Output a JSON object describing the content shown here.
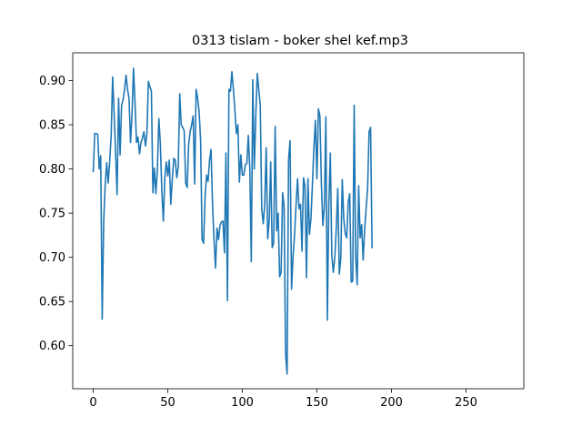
{
  "chart_data": {
    "type": "line",
    "title": "0313 tislam - boker shel kef.mp3",
    "xlabel": "",
    "ylabel": "",
    "xlim": [
      -13.75,
      288.75
    ],
    "ylim": [
      0.5513,
      0.9314
    ],
    "x_ticks": [
      0,
      50,
      100,
      150,
      200,
      250
    ],
    "y_ticks": [
      0.6,
      0.65,
      0.7,
      0.75,
      0.8,
      0.85,
      0.9
    ],
    "x_tick_labels": [
      "0",
      "50",
      "100",
      "150",
      "200",
      "250"
    ],
    "y_tick_labels": [
      "0.60",
      "0.65",
      "0.70",
      "0.75",
      "0.80",
      "0.85",
      "0.90"
    ],
    "grid": false,
    "legend": "none",
    "series": [
      {
        "color": "#1f77b4",
        "x_start": 0,
        "x_step": 1,
        "values": [
          0.797,
          0.84,
          0.84,
          0.839,
          0.8,
          0.815,
          0.63,
          0.74,
          0.782,
          0.807,
          0.784,
          0.808,
          0.837,
          0.904,
          0.863,
          0.818,
          0.771,
          0.88,
          0.816,
          0.872,
          0.878,
          0.89,
          0.906,
          0.89,
          0.88,
          0.83,
          0.862,
          0.914,
          0.875,
          0.83,
          0.836,
          0.817,
          0.83,
          0.835,
          0.842,
          0.826,
          0.84,
          0.899,
          0.893,
          0.888,
          0.773,
          0.801,
          0.772,
          0.799,
          0.857,
          0.829,
          0.775,
          0.741,
          0.79,
          0.808,
          0.792,
          0.81,
          0.76,
          0.788,
          0.812,
          0.81,
          0.79,
          0.802,
          0.885,
          0.85,
          0.847,
          0.843,
          0.784,
          0.779,
          0.828,
          0.842,
          0.85,
          0.86,
          0.783,
          0.89,
          0.88,
          0.865,
          0.832,
          0.72,
          0.716,
          0.768,
          0.793,
          0.786,
          0.81,
          0.822,
          0.76,
          0.72,
          0.688,
          0.733,
          0.72,
          0.736,
          0.74,
          0.741,
          0.705,
          0.818,
          0.651,
          0.89,
          0.888,
          0.91,
          0.89,
          0.866,
          0.84,
          0.85,
          0.785,
          0.816,
          0.793,
          0.793,
          0.805,
          0.806,
          0.838,
          0.8,
          0.695,
          0.901,
          0.8,
          0.86,
          0.908,
          0.89,
          0.873,
          0.755,
          0.738,
          0.76,
          0.824,
          0.721,
          0.741,
          0.808,
          0.711,
          0.716,
          0.848,
          0.73,
          0.75,
          0.678,
          0.683,
          0.773,
          0.757,
          0.59,
          0.568,
          0.811,
          0.832,
          0.664,
          0.701,
          0.725,
          0.759,
          0.789,
          0.755,
          0.76,
          0.707,
          0.79,
          0.781,
          0.677,
          0.789,
          0.726,
          0.744,
          0.783,
          0.825,
          0.855,
          0.789,
          0.868,
          0.86,
          0.784,
          0.736,
          0.757,
          0.859,
          0.629,
          0.76,
          0.818,
          0.702,
          0.683,
          0.7,
          0.733,
          0.778,
          0.681,
          0.698,
          0.788,
          0.744,
          0.727,
          0.722,
          0.762,
          0.772,
          0.672,
          0.673,
          0.872,
          0.701,
          0.669,
          0.781,
          0.722,
          0.737,
          0.697,
          0.731,
          0.755,
          0.778,
          0.842,
          0.847,
          0.711
        ]
      }
    ]
  }
}
